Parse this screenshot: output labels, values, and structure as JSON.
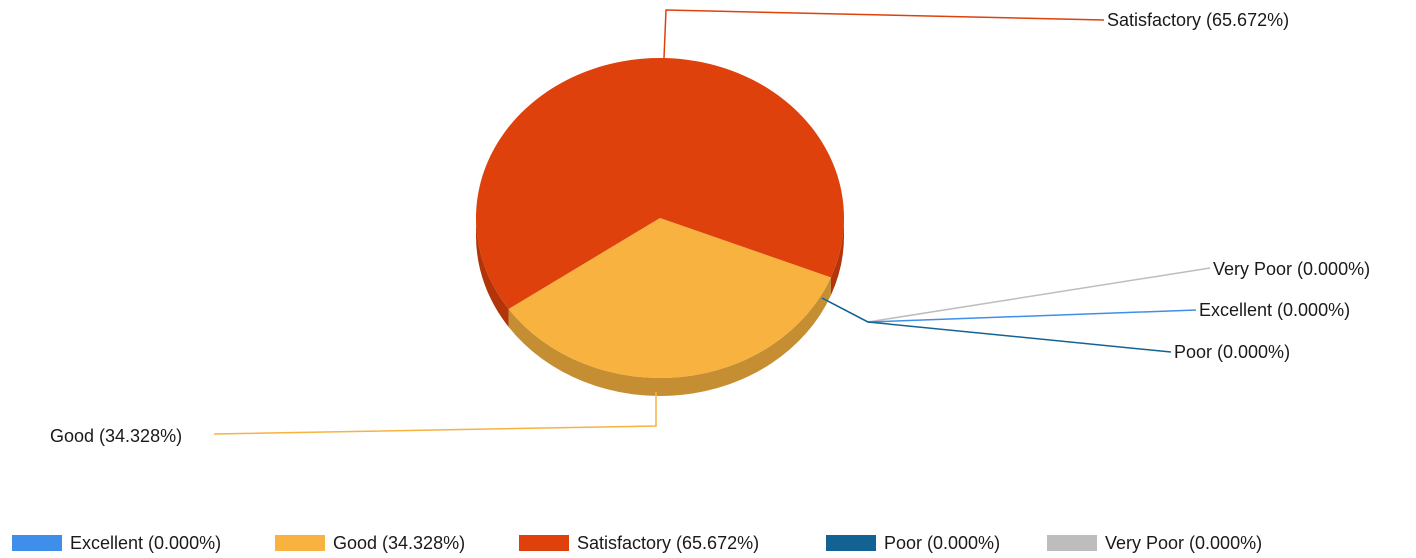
{
  "chart_data": {
    "type": "pie",
    "title": "",
    "legend_position": "bottom",
    "three_d": true,
    "series": [
      {
        "name": "Excellent",
        "value": 0.0,
        "label": "Excellent (0.000%)",
        "color": "#3f8fea"
      },
      {
        "name": "Good",
        "value": 34.328,
        "label": "Good (34.328%)",
        "color": "#f8b240"
      },
      {
        "name": "Satisfactory",
        "value": 65.672,
        "label": "Satisfactory (65.672%)",
        "color": "#de410b"
      },
      {
        "name": "Poor",
        "value": 0.0,
        "label": "Poor (0.000%)",
        "color": "#126394"
      },
      {
        "name": "Very Poor",
        "value": 0.0,
        "label": "Very Poor (0.000%)",
        "color": "#bdbdbd"
      }
    ]
  }
}
